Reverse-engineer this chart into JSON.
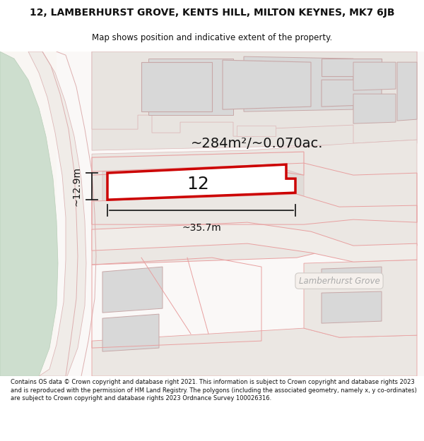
{
  "title_line1": "12, LAMBERHURST GROVE, KENTS HILL, MILTON KEYNES, MK7 6JB",
  "title_line2": "Map shows position and indicative extent of the property.",
  "footer_text": "Contains OS data © Crown copyright and database right 2021. This information is subject to Crown copyright and database rights 2023 and is reproduced with the permission of HM Land Registry. The polygons (including the associated geometry, namely x, y co-ordinates) are subject to Crown copyright and database rights 2023 Ordnance Survey 100026316.",
  "area_label": "~284m²/~0.070ac.",
  "width_label": "~35.7m",
  "height_label": "~12.9m",
  "property_number": "12",
  "white_bg": "#ffffff",
  "map_bg": "#f9f6f3",
  "building_fill": "#d8d8d8",
  "building_edge": "#c8a8a8",
  "highlight_fill": "#ffffff",
  "highlight_edge": "#cc0000",
  "plot_line_color": "#e8a0a0",
  "green_fill": "#cddece",
  "green_edge": "#b8ceb8",
  "dim_line_color": "#222222",
  "road_label": "Lamberhurst Grove",
  "road_label_color": "#aaaaaa",
  "road_label_bg": "#f5f0ec"
}
